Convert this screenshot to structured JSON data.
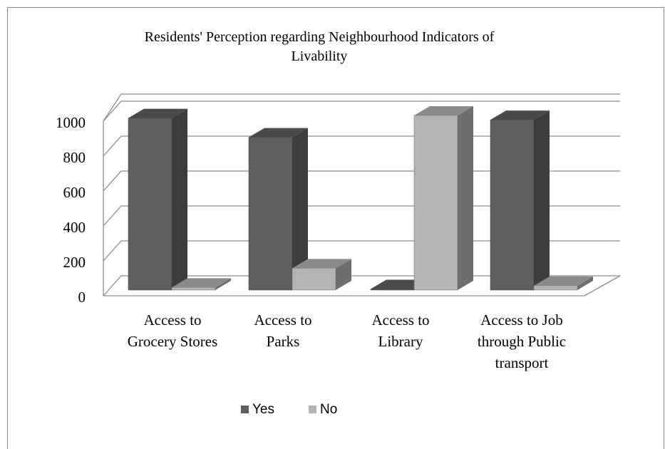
{
  "chart_data": {
    "type": "bar",
    "title": "Residents' Perception regarding Neighbourhood Indicators of Livability",
    "title_lines": [
      "Residents' Perception regarding Neighbourhood Indicators of",
      "Livability"
    ],
    "categories": [
      "Access to Grocery Stores",
      "Access to Parks",
      "Access to Library",
      "Access to Job through Public transport"
    ],
    "category_lines": [
      [
        "Access to",
        "Grocery Stores"
      ],
      [
        "Access to",
        "Parks"
      ],
      [
        "Access to",
        "Library"
      ],
      [
        "Access to Job",
        "through Public",
        "transport"
      ]
    ],
    "series": [
      {
        "name": "Yes",
        "values": [
          985,
          875,
          0,
          975
        ]
      },
      {
        "name": "No",
        "values": [
          15,
          125,
          1000,
          25
        ]
      }
    ],
    "yticks": [
      0,
      200,
      400,
      600,
      800,
      1000
    ],
    "ylim": [
      0,
      1000
    ],
    "grid": true,
    "legend_position": "bottom",
    "style": "3d-clustered-column",
    "colors": {
      "yes_front": "#5f5f5f",
      "yes_side": "#3d3d3d",
      "yes_top": "#4a4a4a",
      "no_front": "#b3b3b3",
      "no_side": "#6e6e6e",
      "no_top": "#8a8a8a",
      "grid": "#8c8c8c"
    }
  }
}
